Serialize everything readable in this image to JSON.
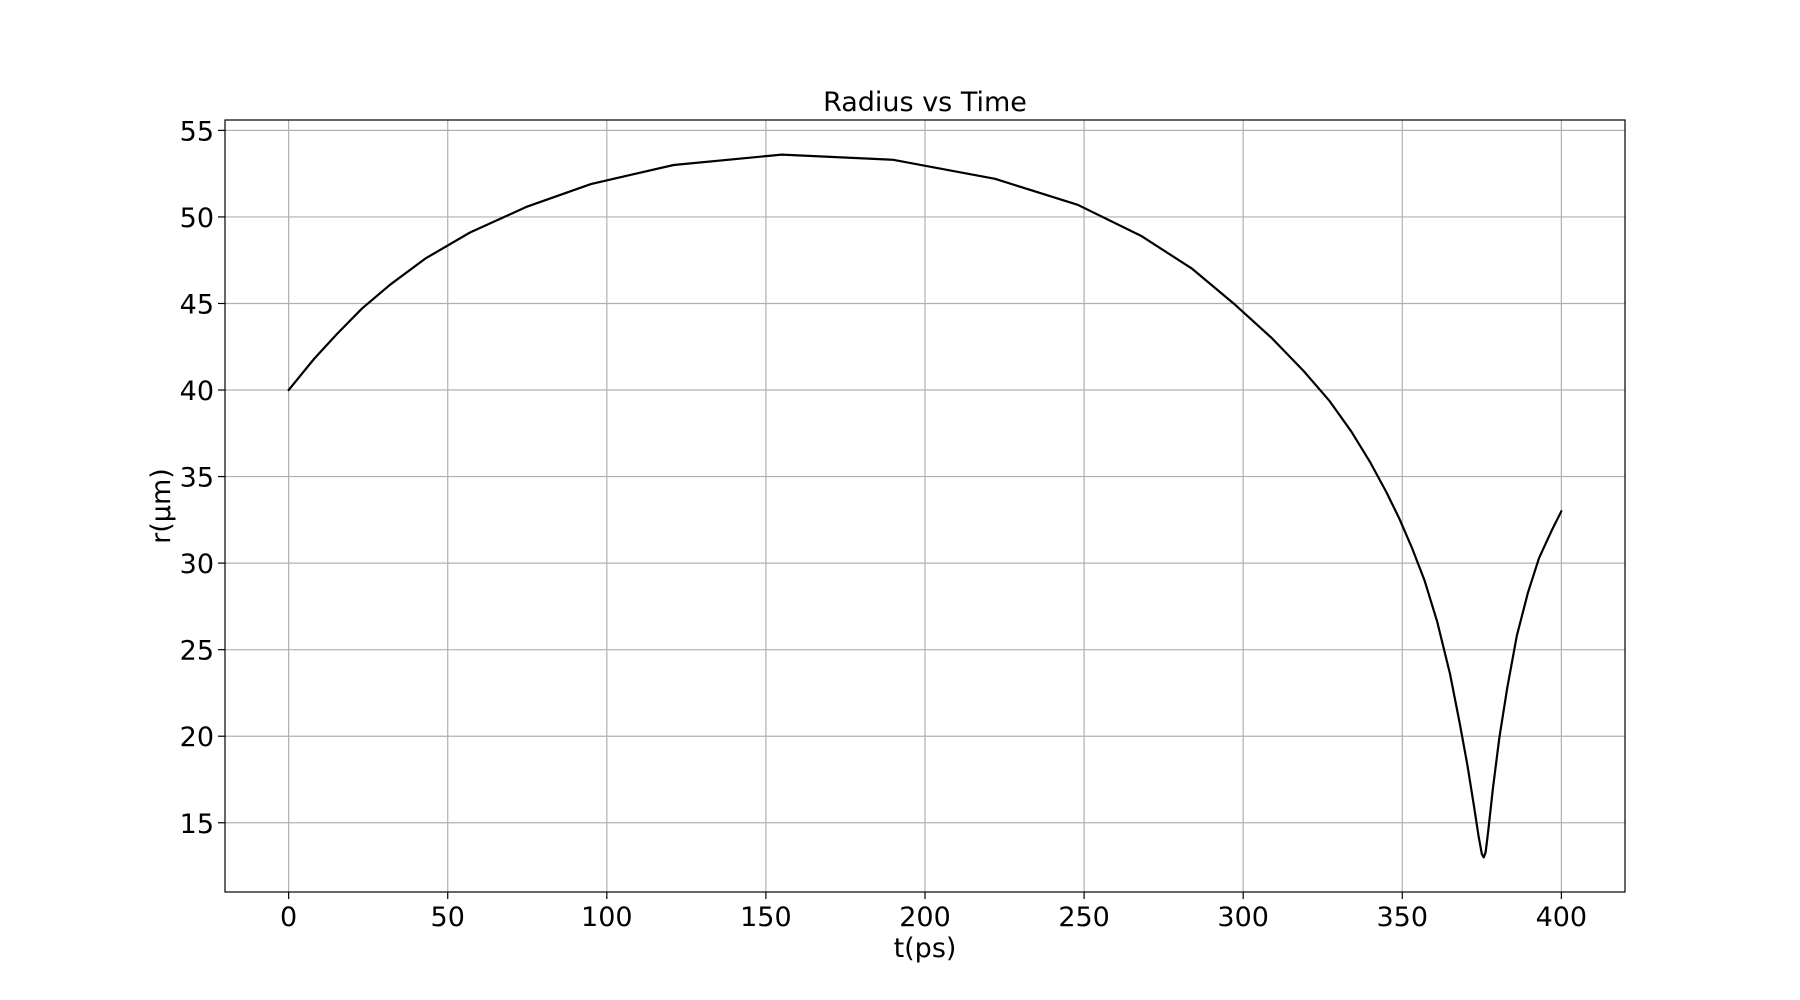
{
  "chart_data": {
    "type": "line",
    "title": "Radius vs Time",
    "xlabel": "t(ps)",
    "ylabel": "r(μm)",
    "xlim": [
      -20,
      420
    ],
    "ylim": [
      11,
      55.6
    ],
    "xticks": [
      0,
      50,
      100,
      150,
      200,
      250,
      300,
      350,
      400
    ],
    "yticks": [
      15,
      20,
      25,
      30,
      35,
      40,
      45,
      50,
      55
    ],
    "grid": true,
    "line_color": "#000000",
    "series": [
      {
        "x": [
          0,
          8,
          15,
          23,
          32,
          43,
          57,
          75,
          95,
          121,
          155,
          190,
          222,
          248,
          268,
          284,
          297,
          309,
          319,
          327,
          334,
          340,
          345,
          349,
          353,
          357,
          361,
          365,
          368,
          370.5,
          372.5,
          374,
          375,
          375.6,
          376.2,
          377,
          378.5,
          380.5,
          383,
          386,
          389.5,
          393,
          397,
          400
        ],
        "y": [
          40,
          41.8,
          43.2,
          44.7,
          46.1,
          47.6,
          49.1,
          50.6,
          51.9,
          53.0,
          53.6,
          53.3,
          52.2,
          50.7,
          48.9,
          47.0,
          45.0,
          43.0,
          41.1,
          39.4,
          37.6,
          35.8,
          34.1,
          32.6,
          30.9,
          29.0,
          26.6,
          23.6,
          20.8,
          18.3,
          16.0,
          14.2,
          13.2,
          13.0,
          13.3,
          14.5,
          17.0,
          19.9,
          22.8,
          25.8,
          28.3,
          30.3,
          31.9,
          33.0
        ]
      }
    ]
  }
}
